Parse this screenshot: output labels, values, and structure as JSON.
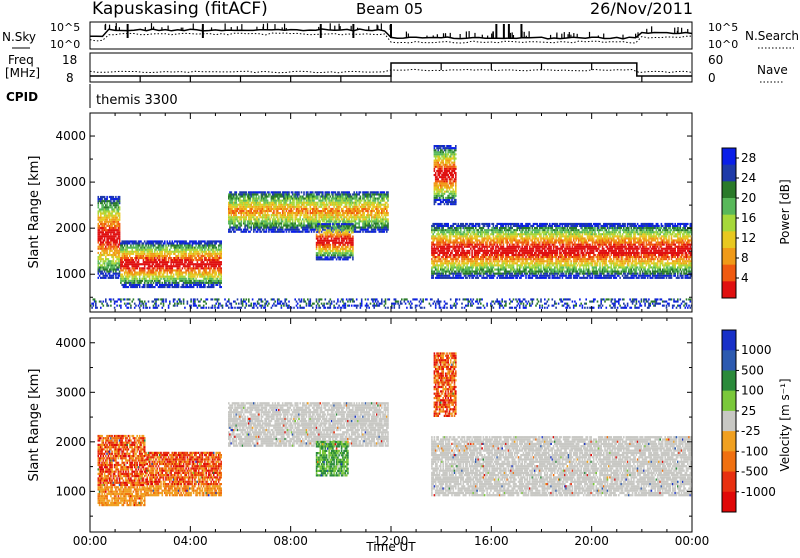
{
  "header": {
    "station": "Kapuskasing (fitACF)",
    "beam": "Beam 05",
    "date": "26/Nov/2011"
  },
  "status_panels": {
    "nsky_label": "N.Sky",
    "nsky_ticks": [
      "10^5",
      "10^0"
    ],
    "nsearch_label": "N.Search",
    "nsearch_ticks": [
      "10^5",
      "10^0"
    ],
    "freq_label_line1": "Freq",
    "freq_label_line2": "[MHz]",
    "freq_ticks": [
      "18",
      "8"
    ],
    "nave_label": "Nave",
    "nave_ticks": [
      "60",
      "0"
    ],
    "cpid_label": "CPID",
    "cpid_value": "themis 3300"
  },
  "colors": {
    "power_scale": [
      "#0a1fe8",
      "#1e3aa8",
      "#2a7a2a",
      "#58b85a",
      "#a6d83a",
      "#e8c820",
      "#f09a18",
      "#f05a10",
      "#e01010"
    ],
    "velocity_scale": [
      "#1830c8",
      "#2c5ab0",
      "#2a8a3a",
      "#7ac83a",
      "#c8c8c4",
      "#f0a020",
      "#f07010",
      "#e83010",
      "#e00808"
    ],
    "ground_scatter": "#c8c8c4"
  },
  "chart_data": [
    {
      "type": "heatmap",
      "name_panel": "power",
      "ylabel": "Slant Range [km]",
      "xlabel": "",
      "x_ticks": [
        "00:00",
        "04:00",
        "08:00",
        "12:00",
        "16:00",
        "20:00",
        "00:00"
      ],
      "y_ticks": [
        1000,
        2000,
        3000,
        4000
      ],
      "xlim_hours": [
        0,
        24
      ],
      "ylim_km": [
        180,
        4500
      ],
      "colorbar": {
        "label": "Power [dB]",
        "ticks": [
          4,
          8,
          12,
          16,
          20,
          24,
          28
        ],
        "range": [
          0,
          30
        ]
      },
      "regions": [
        {
          "t": [
            0.3,
            1.2
          ],
          "r": [
            900,
            2700
          ],
          "level": "mixed"
        },
        {
          "t": [
            1.2,
            5.2
          ],
          "r": [
            700,
            1700
          ],
          "level": "strong"
        },
        {
          "t": [
            5.5,
            11.9
          ],
          "r": [
            1900,
            2800
          ],
          "level": "band"
        },
        {
          "t": [
            9.0,
            10.5
          ],
          "r": [
            1300,
            2100
          ],
          "level": "mixed"
        },
        {
          "t": [
            13.6,
            24.0
          ],
          "r": [
            900,
            2100
          ],
          "level": "strong"
        },
        {
          "t": [
            13.7,
            14.6
          ],
          "r": [
            2500,
            3800
          ],
          "level": "mixed"
        },
        {
          "t": [
            0.0,
            24.0
          ],
          "r": [
            250,
            450
          ],
          "level": "weak"
        }
      ]
    },
    {
      "type": "heatmap",
      "name_panel": "velocity",
      "ylabel": "Slant Range [km]",
      "xlabel": "Time UT",
      "x_ticks": [
        "00:00",
        "04:00",
        "08:00",
        "12:00",
        "16:00",
        "20:00",
        "00:00"
      ],
      "y_ticks": [
        1000,
        2000,
        3000,
        4000
      ],
      "xlim_hours": [
        0,
        24
      ],
      "ylim_km": [
        180,
        4500
      ],
      "colorbar": {
        "label": "Velocity [m s⁻¹]",
        "ticks": [
          1000,
          500,
          100,
          25,
          -25,
          -100,
          -500,
          -1000
        ]
      },
      "regions": [
        {
          "t": [
            0.3,
            2.2
          ],
          "r": [
            700,
            2100
          ],
          "level": "negative"
        },
        {
          "t": [
            2.2,
            5.2
          ],
          "r": [
            900,
            1800
          ],
          "level": "negative"
        },
        {
          "t": [
            5.5,
            11.9
          ],
          "r": [
            1900,
            2800
          ],
          "level": "ground"
        },
        {
          "t": [
            9.0,
            10.3
          ],
          "r": [
            1300,
            2000
          ],
          "level": "positive"
        },
        {
          "t": [
            13.6,
            24.0
          ],
          "r": [
            900,
            2100
          ],
          "level": "ground"
        },
        {
          "t": [
            13.7,
            14.6
          ],
          "r": [
            2500,
            3800
          ],
          "level": "negative"
        }
      ]
    }
  ]
}
